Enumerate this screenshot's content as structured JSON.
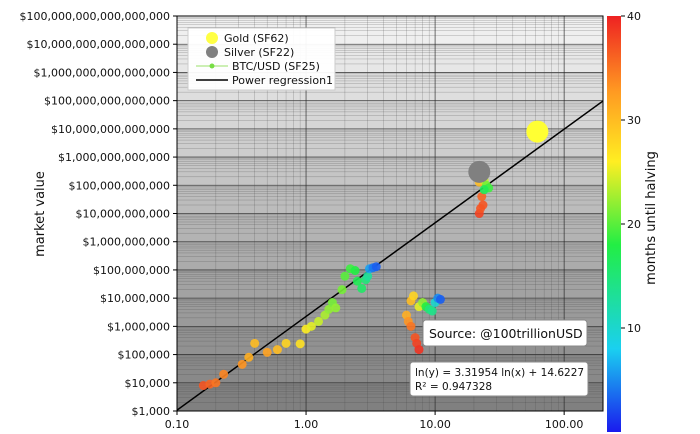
{
  "chart_data": {
    "type": "scatter",
    "xscale": "log",
    "yscale": "log",
    "xlim": [
      0.1,
      200
    ],
    "ylim": [
      1000,
      100000000000000000
    ],
    "xticks": [
      0.1,
      1,
      10,
      100
    ],
    "xtick_labels": [
      "0.10",
      "1.00",
      "10.00",
      "100.00"
    ],
    "yticks": [
      1000,
      10000,
      100000,
      1000000,
      10000000,
      100000000,
      1000000000,
      10000000000,
      100000000000,
      1000000000000,
      10000000000000,
      100000000000000,
      1000000000000000,
      10000000000000000,
      100000000000000000
    ],
    "ytick_labels": [
      "$1,000",
      "$10,000",
      "$100,000",
      "$1,000,000",
      "$10,000,000",
      "$100,000,000",
      "$1,000,000,000",
      "$10,000,000,000",
      "$100,000,000,000",
      "$1,000,000,000,000",
      "$10,000,000,000,000",
      "$100,000,000,000,000",
      "$1,000,000,000,000,000",
      "$10,000,000,000,000,000",
      "$100,000,000,000,000,000"
    ],
    "ylabel": "market value",
    "colorbar": {
      "label": "months until halving",
      "range": [
        0,
        40
      ],
      "ticks": [
        10,
        20,
        30,
        40
      ],
      "tick_labels": [
        "10",
        "20",
        "30",
        "40"
      ]
    },
    "legend": {
      "placement": "top-left",
      "entries": [
        "Gold (SF62)",
        "Silver (SF22)",
        "BTC/USD (SF25)",
        "Power regression1"
      ]
    },
    "series": [
      {
        "name": "Gold (SF62)",
        "color": "#ffff33",
        "points": [
          {
            "x": 62,
            "y": 8000000000000
          }
        ]
      },
      {
        "name": "Silver (SF22)",
        "color": "#808080",
        "points": [
          {
            "x": 22,
            "y": 300000000000
          }
        ]
      },
      {
        "name": "BTC/USD (SF25)",
        "colored_by": "months until halving",
        "points": [
          {
            "x": 0.16,
            "y": 8000,
            "c": 37
          },
          {
            "x": 0.18,
            "y": 9000,
            "c": 36
          },
          {
            "x": 0.2,
            "y": 10000,
            "c": 35
          },
          {
            "x": 0.23,
            "y": 20000,
            "c": 34
          },
          {
            "x": 0.32,
            "y": 45000,
            "c": 33
          },
          {
            "x": 0.36,
            "y": 80000,
            "c": 31
          },
          {
            "x": 0.4,
            "y": 250000,
            "c": 30
          },
          {
            "x": 0.5,
            "y": 120000,
            "c": 32
          },
          {
            "x": 0.6,
            "y": 150000,
            "c": 30
          },
          {
            "x": 0.7,
            "y": 250000,
            "c": 28
          },
          {
            "x": 0.9,
            "y": 240000,
            "c": 27
          },
          {
            "x": 1.0,
            "y": 800000,
            "c": 26
          },
          {
            "x": 1.1,
            "y": 1000000,
            "c": 25
          },
          {
            "x": 1.25,
            "y": 1500000,
            "c": 24
          },
          {
            "x": 1.4,
            "y": 2500000,
            "c": 23
          },
          {
            "x": 1.5,
            "y": 4000000,
            "c": 22
          },
          {
            "x": 1.6,
            "y": 7000000,
            "c": 21
          },
          {
            "x": 1.7,
            "y": 4500000,
            "c": 22
          },
          {
            "x": 1.9,
            "y": 20000000,
            "c": 21
          },
          {
            "x": 2.0,
            "y": 60000000,
            "c": 20
          },
          {
            "x": 2.2,
            "y": 110000000,
            "c": 19
          },
          {
            "x": 2.4,
            "y": 95000000,
            "c": 18
          },
          {
            "x": 2.5,
            "y": 40000000,
            "c": 17
          },
          {
            "x": 2.7,
            "y": 22000000,
            "c": 16
          },
          {
            "x": 2.9,
            "y": 45000000,
            "c": 15
          },
          {
            "x": 3.0,
            "y": 60000000,
            "c": 13
          },
          {
            "x": 3.1,
            "y": 110000000,
            "c": 6
          },
          {
            "x": 3.3,
            "y": 120000000,
            "c": 4
          },
          {
            "x": 3.5,
            "y": 130000000,
            "c": 3
          },
          {
            "x": 6.0,
            "y": 2500000,
            "c": 31
          },
          {
            "x": 6.2,
            "y": 1500000,
            "c": 33
          },
          {
            "x": 6.5,
            "y": 1000000,
            "c": 35
          },
          {
            "x": 6.5,
            "y": 8000000,
            "c": 30
          },
          {
            "x": 6.8,
            "y": 12000000,
            "c": 28
          },
          {
            "x": 7.0,
            "y": 400000,
            "c": 37
          },
          {
            "x": 7.2,
            "y": 250000,
            "c": 38
          },
          {
            "x": 7.5,
            "y": 150000,
            "c": 39
          },
          {
            "x": 7.5,
            "y": 5000000,
            "c": 25
          },
          {
            "x": 8.0,
            "y": 7000000,
            "c": 22
          },
          {
            "x": 8.5,
            "y": 5000000,
            "c": 18
          },
          {
            "x": 9.0,
            "y": 4000000,
            "c": 15
          },
          {
            "x": 9.5,
            "y": 3500000,
            "c": 14
          },
          {
            "x": 10.0,
            "y": 7000000,
            "c": 10
          },
          {
            "x": 10.5,
            "y": 10000000,
            "c": 5
          },
          {
            "x": 11.0,
            "y": 9000000,
            "c": 3
          },
          {
            "x": 22.0,
            "y": 10000000000,
            "c": 38
          },
          {
            "x": 22.5,
            "y": 15000000000,
            "c": 37
          },
          {
            "x": 23.0,
            "y": 40000000000,
            "c": 36
          },
          {
            "x": 23.5,
            "y": 20000000000,
            "c": 37
          },
          {
            "x": 22.0,
            "y": 130000000000,
            "c": 30
          },
          {
            "x": 23.0,
            "y": 200000000000,
            "c": 27
          },
          {
            "x": 24.0,
            "y": 150000000000,
            "c": 24
          },
          {
            "x": 25.0,
            "y": 100000000000,
            "c": 21
          },
          {
            "x": 26.0,
            "y": 80000000000,
            "c": 19
          },
          {
            "x": 24.0,
            "y": 70000000000,
            "c": 17
          }
        ]
      },
      {
        "name": "Power regression1",
        "type": "line",
        "color": "#000000",
        "intercept": 14.6227,
        "slope": 3.31954
      }
    ],
    "annotations": {
      "source": "Source: @100trillionUSD",
      "equation": "ln(y) = 3.31954 ln(x) + 14.6227",
      "r_squared": "R² = 0.947328"
    }
  }
}
